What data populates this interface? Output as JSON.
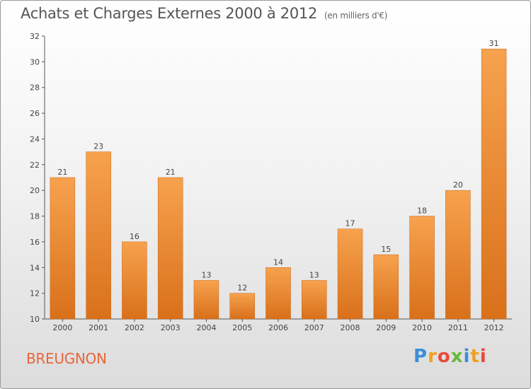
{
  "header": {
    "title": "Achats et Charges Externes 2000 à 2012",
    "unit": "(en milliers d'€)"
  },
  "footer": {
    "commune": "BREUGNON",
    "logo_letters": [
      "P",
      "r",
      "o",
      "x",
      "i",
      "t",
      "i"
    ]
  },
  "colors": {
    "bar_light": "#f7a24e",
    "bar_dark": "#d9701a",
    "axis": "#555555",
    "grid": "#d0d0d0",
    "label": "#444444",
    "commune": "#e8663a"
  },
  "chart_data": {
    "type": "bar",
    "title": "Achats et Charges Externes 2000 à 2012",
    "xlabel": "",
    "ylabel": "",
    "categories": [
      "2000",
      "2001",
      "2002",
      "2003",
      "2004",
      "2005",
      "2006",
      "2007",
      "2008",
      "2009",
      "2010",
      "2011",
      "2012"
    ],
    "values": [
      21,
      23,
      16,
      21,
      13,
      12,
      14,
      13,
      17,
      15,
      18,
      20,
      31
    ],
    "ylim": [
      10,
      32
    ],
    "yticks": [
      10,
      12,
      14,
      16,
      18,
      20,
      22,
      24,
      26,
      28,
      30,
      32
    ],
    "grid": false,
    "data_labels": true
  }
}
